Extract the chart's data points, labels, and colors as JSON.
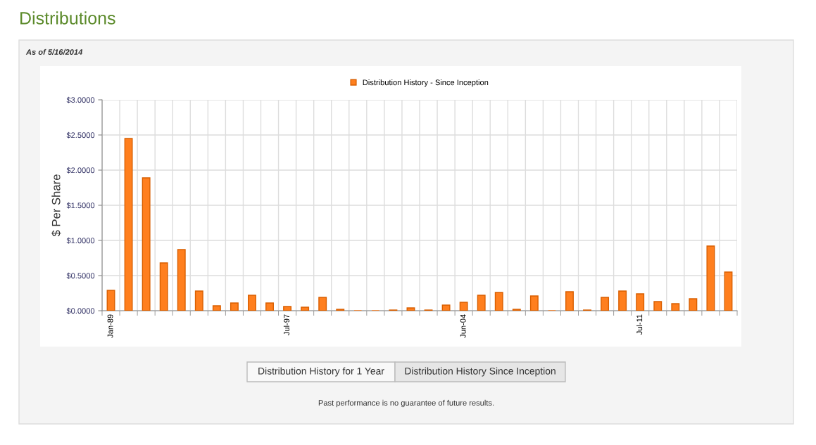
{
  "chart_data": {
    "type": "bar",
    "title": "Distributions",
    "subtitle": "As of 5/16/2014",
    "ylabel": "$ Per Share",
    "categories": [
      "Jan-89",
      null,
      null,
      null,
      null,
      null,
      null,
      null,
      null,
      null,
      "Jul-97",
      null,
      null,
      null,
      null,
      null,
      null,
      null,
      null,
      null,
      "Jun-04",
      null,
      null,
      null,
      null,
      null,
      null,
      null,
      null,
      null,
      "Jul-11",
      null,
      null,
      null,
      null,
      null
    ],
    "series": [
      {
        "name": "Distribution History - Since Inception",
        "color": "#ff7f1e",
        "values": [
          0.29,
          2.45,
          1.89,
          0.68,
          0.87,
          0.28,
          0.07,
          0.11,
          0.22,
          0.11,
          0.06,
          0.05,
          0.19,
          0.02,
          0.0,
          0.0,
          0.01,
          0.04,
          0.01,
          0.08,
          0.12,
          0.22,
          0.26,
          0.02,
          0.21,
          0.0,
          0.27,
          0.01,
          0.19,
          0.28,
          0.24,
          0.13,
          0.1,
          0.17,
          0.92,
          0.55
        ]
      }
    ],
    "ylim": [
      0,
      3
    ],
    "yticks": [
      {
        "value": 0,
        "label": "$0.0000"
      },
      {
        "value": 0.5,
        "label": "$0.5000"
      },
      {
        "value": 1,
        "label": "$1.0000"
      },
      {
        "value": 1.5,
        "label": "$1.5000"
      },
      {
        "value": 2,
        "label": "$2.0000"
      },
      {
        "value": 2.5,
        "label": "$2.5000"
      },
      {
        "value": 3,
        "label": "$3.0000"
      }
    ],
    "grid": true,
    "legend": "top",
    "annotations": [
      "Distribution History for 1 Year",
      "Distribution History Since Inception",
      "Past performance is no guarantee of future results."
    ]
  }
}
